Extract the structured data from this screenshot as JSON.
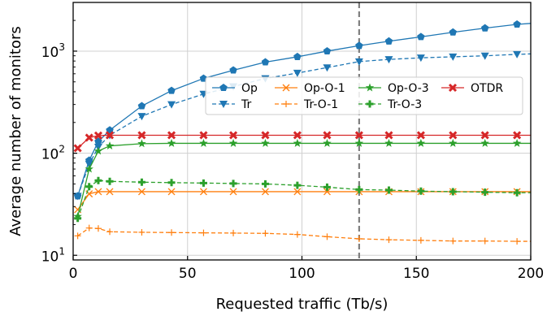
{
  "chart_data": {
    "type": "line",
    "xlabel": "Requested traffic (Tb/s)",
    "ylabel": "Average number of monitors",
    "xlim": [
      0,
      200
    ],
    "ylim": [
      9,
      3000
    ],
    "yscale": "log",
    "grid": true,
    "xticks": [
      0,
      50,
      100,
      150,
      200
    ],
    "yticks": [
      {
        "value": 10,
        "base": "10",
        "exp": "1"
      },
      {
        "value": 100,
        "base": "10",
        "exp": "2"
      },
      {
        "value": 1000,
        "base": "10",
        "exp": "3"
      }
    ],
    "vline_x": 125,
    "legend_position": "upper-middle",
    "series": [
      {
        "name": "Op",
        "color": "#1f77b4",
        "marker": "pentagon",
        "dash": "solid",
        "x": [
          2,
          7,
          11,
          16,
          30,
          43,
          57,
          70,
          84,
          98,
          111,
          125,
          138,
          152,
          166,
          180,
          194,
          200
        ],
        "y": [
          38,
          85,
          130,
          168,
          290,
          410,
          540,
          650,
          780,
          880,
          1000,
          1130,
          1250,
          1380,
          1530,
          1680,
          1830,
          1870
        ]
      },
      {
        "name": "Tr",
        "color": "#1f77b4",
        "marker": "triangle-down",
        "dash": "dashed",
        "x": [
          2,
          7,
          11,
          16,
          30,
          43,
          57,
          70,
          84,
          98,
          111,
          125,
          138,
          152,
          166,
          180,
          194,
          200
        ],
        "y": [
          38,
          78,
          115,
          150,
          230,
          300,
          380,
          450,
          540,
          610,
          690,
          790,
          830,
          860,
          880,
          900,
          930,
          940
        ]
      },
      {
        "name": "Op-O-1",
        "color": "#ff7f0e",
        "marker": "x",
        "dash": "solid",
        "x": [
          2,
          7,
          11,
          16,
          30,
          43,
          57,
          70,
          84,
          98,
          111,
          125,
          138,
          152,
          166,
          180,
          194,
          200
        ],
        "y": [
          28,
          40,
          42,
          42,
          42,
          42,
          42,
          42,
          42,
          42,
          42,
          42,
          42,
          42,
          42,
          42,
          42,
          42
        ]
      },
      {
        "name": "Tr-O-1",
        "color": "#ff7f0e",
        "marker": "plus",
        "dash": "dashed",
        "x": [
          2,
          7,
          11,
          16,
          30,
          43,
          57,
          70,
          84,
          98,
          111,
          125,
          138,
          152,
          166,
          180,
          194,
          200
        ],
        "y": [
          15.5,
          18.5,
          18.3,
          17,
          16.8,
          16.7,
          16.6,
          16.5,
          16.4,
          16,
          15.2,
          14.5,
          14.2,
          14,
          13.8,
          13.8,
          13.7,
          13.7
        ]
      },
      {
        "name": "Op-O-3",
        "color": "#2ca02c",
        "marker": "star",
        "dash": "solid",
        "x": [
          2,
          7,
          11,
          16,
          30,
          43,
          57,
          70,
          84,
          98,
          111,
          125,
          138,
          152,
          166,
          180,
          194,
          200
        ],
        "y": [
          24,
          70,
          105,
          118,
          124,
          125,
          125,
          125,
          125,
          125,
          125,
          125,
          125,
          125,
          125,
          125,
          125,
          125
        ]
      },
      {
        "name": "Tr-O-3",
        "color": "#2ca02c",
        "marker": "plus-bold",
        "dash": "dashed",
        "x": [
          2,
          7,
          11,
          16,
          30,
          43,
          57,
          70,
          84,
          98,
          111,
          125,
          138,
          152,
          166,
          180,
          194,
          200
        ],
        "y": [
          23,
          47,
          54,
          53,
          52,
          51.5,
          51,
          50.5,
          50,
          48.5,
          46.5,
          44,
          43.5,
          42.5,
          42,
          41.5,
          41,
          41
        ]
      },
      {
        "name": "OTDR",
        "color": "#d62728",
        "marker": "x-bold",
        "dash": "solid",
        "x": [
          2,
          7,
          11,
          16,
          30,
          43,
          57,
          70,
          84,
          98,
          111,
          125,
          138,
          152,
          166,
          180,
          194,
          200
        ],
        "y": [
          112,
          142,
          149,
          150,
          150,
          150,
          150,
          150,
          150,
          150,
          150,
          150,
          150,
          150,
          150,
          150,
          150,
          150
        ]
      }
    ]
  }
}
